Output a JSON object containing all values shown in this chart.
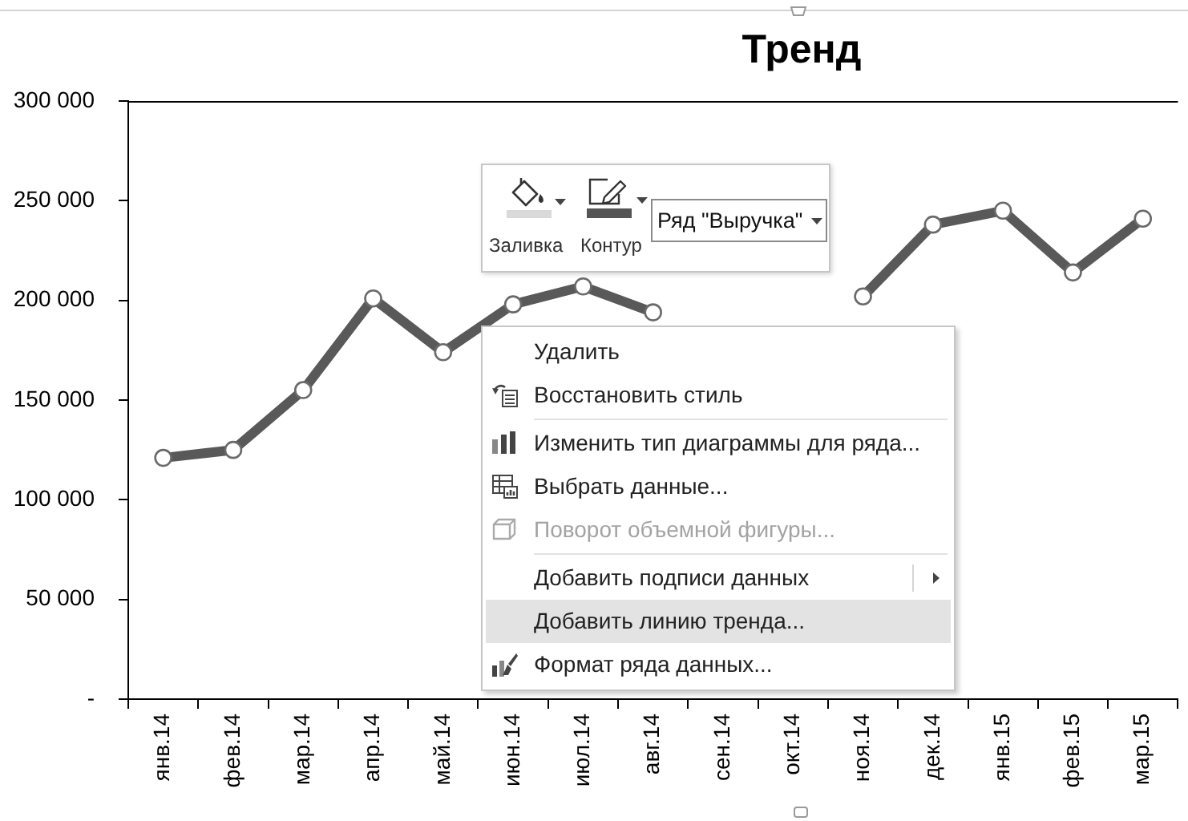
{
  "chart_data": {
    "type": "line",
    "title": "Тренд",
    "categories": [
      "янв.14",
      "фев.14",
      "мар.14",
      "апр.14",
      "май.14",
      "июн.14",
      "июл.14",
      "авг.14",
      "сен.14",
      "окт.14",
      "ноя.14",
      "дек.14",
      "янв.15",
      "фев.15",
      "мар.15"
    ],
    "values": [
      121000,
      125000,
      155000,
      201000,
      174000,
      198000,
      207000,
      194000,
      null,
      null,
      202000,
      238000,
      245000,
      214000,
      241000
    ],
    "color": "#595959",
    "ylim": [
      0,
      300000
    ],
    "yticks": [
      {
        "value": 0,
        "label": "-"
      },
      {
        "value": 50000,
        "label": "50 000"
      },
      {
        "value": 100000,
        "label": "100 000"
      },
      {
        "value": 150000,
        "label": "150 000"
      },
      {
        "value": 200000,
        "label": "200 000"
      },
      {
        "value": 250000,
        "label": "250 000"
      },
      {
        "value": 300000,
        "label": "300 000"
      }
    ],
    "marker": "circle",
    "line_style": "solid",
    "annotations": [
      "Заливка",
      "Контур",
      "Ряд \"Выручка\"",
      "Удалить",
      "Восстановить стиль",
      "Изменить тип диаграммы для ряда...",
      "Выбрать данные...",
      "Поворот объемной фигуры...",
      "Добавить подписи данных",
      "Добавить линию тренда...",
      "Формат ряда данных..."
    ]
  }
}
